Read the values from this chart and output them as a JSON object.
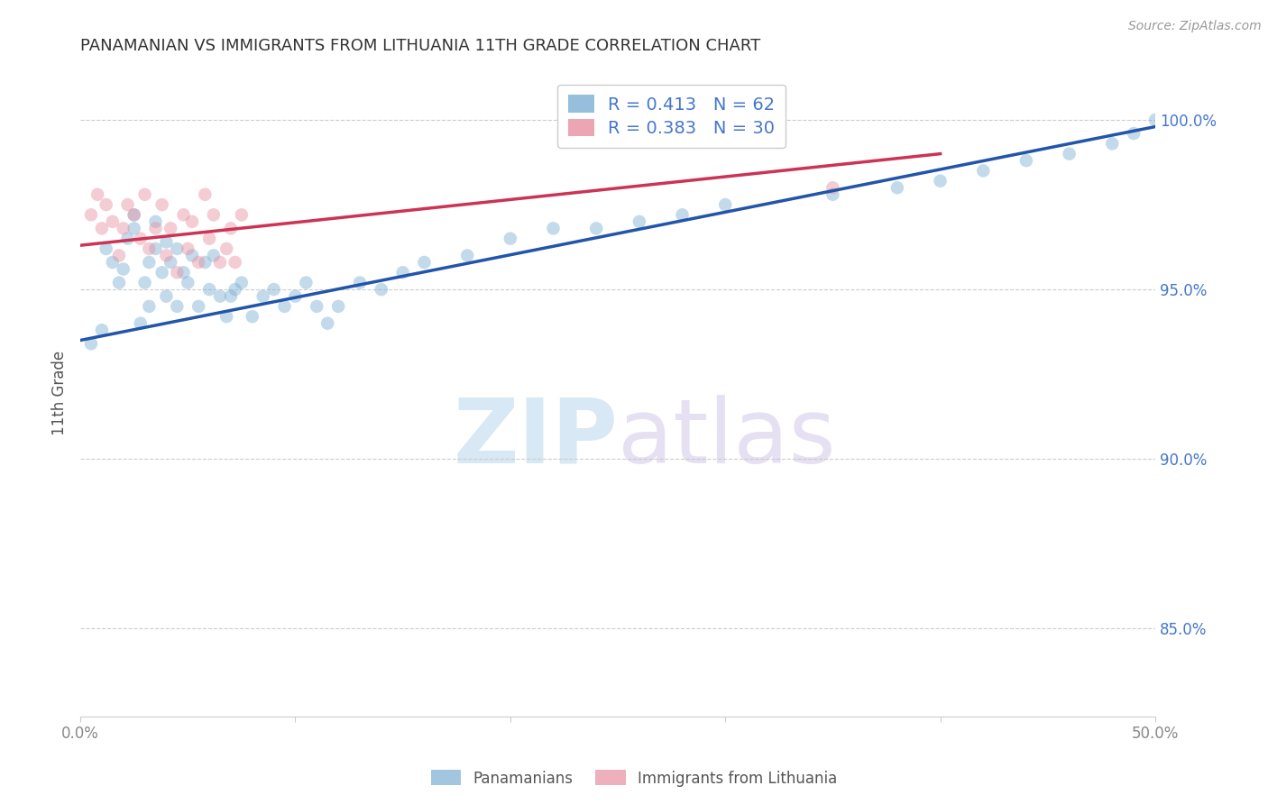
{
  "title": "PANAMANIAN VS IMMIGRANTS FROM LITHUANIA 11TH GRADE CORRELATION CHART",
  "source": "Source: ZipAtlas.com",
  "ylabel": "11th Grade",
  "y_tick_vals": [
    0.85,
    0.9,
    0.95,
    1.0
  ],
  "x_lim": [
    0.0,
    0.5
  ],
  "y_lim": [
    0.824,
    1.015
  ],
  "legend_entries": [
    {
      "label": "R = 0.413   N = 62",
      "color": "#a8c4e0"
    },
    {
      "label": "R = 0.383   N = 30",
      "color": "#f4a8b8"
    }
  ],
  "blue_scatter_x": [
    0.005,
    0.01,
    0.012,
    0.015,
    0.018,
    0.02,
    0.022,
    0.025,
    0.025,
    0.028,
    0.03,
    0.032,
    0.032,
    0.035,
    0.035,
    0.038,
    0.04,
    0.04,
    0.042,
    0.045,
    0.045,
    0.048,
    0.05,
    0.052,
    0.055,
    0.058,
    0.06,
    0.062,
    0.065,
    0.068,
    0.07,
    0.072,
    0.075,
    0.08,
    0.085,
    0.09,
    0.095,
    0.1,
    0.105,
    0.11,
    0.115,
    0.12,
    0.13,
    0.14,
    0.15,
    0.16,
    0.18,
    0.2,
    0.22,
    0.24,
    0.26,
    0.28,
    0.3,
    0.35,
    0.38,
    0.4,
    0.42,
    0.44,
    0.46,
    0.48,
    0.49,
    0.5
  ],
  "blue_scatter_y": [
    0.934,
    0.938,
    0.962,
    0.958,
    0.952,
    0.956,
    0.965,
    0.968,
    0.972,
    0.94,
    0.952,
    0.958,
    0.945,
    0.97,
    0.962,
    0.955,
    0.948,
    0.964,
    0.958,
    0.945,
    0.962,
    0.955,
    0.952,
    0.96,
    0.945,
    0.958,
    0.95,
    0.96,
    0.948,
    0.942,
    0.948,
    0.95,
    0.952,
    0.942,
    0.948,
    0.95,
    0.945,
    0.948,
    0.952,
    0.945,
    0.94,
    0.945,
    0.952,
    0.95,
    0.955,
    0.958,
    0.96,
    0.965,
    0.968,
    0.968,
    0.97,
    0.972,
    0.975,
    0.978,
    0.98,
    0.982,
    0.985,
    0.988,
    0.99,
    0.993,
    0.996,
    1.0
  ],
  "pink_scatter_x": [
    0.005,
    0.008,
    0.01,
    0.012,
    0.015,
    0.018,
    0.02,
    0.022,
    0.025,
    0.028,
    0.03,
    0.032,
    0.035,
    0.038,
    0.04,
    0.042,
    0.045,
    0.048,
    0.05,
    0.052,
    0.055,
    0.058,
    0.06,
    0.062,
    0.065,
    0.068,
    0.07,
    0.072,
    0.075,
    0.35
  ],
  "pink_scatter_y": [
    0.972,
    0.978,
    0.968,
    0.975,
    0.97,
    0.96,
    0.968,
    0.975,
    0.972,
    0.965,
    0.978,
    0.962,
    0.968,
    0.975,
    0.96,
    0.968,
    0.955,
    0.972,
    0.962,
    0.97,
    0.958,
    0.978,
    0.965,
    0.972,
    0.958,
    0.962,
    0.968,
    0.958,
    0.972,
    0.98
  ],
  "blue_line_x": [
    0.0,
    0.5
  ],
  "blue_line_y": [
    0.935,
    0.998
  ],
  "pink_line_x": [
    0.0,
    0.4
  ],
  "pink_line_y": [
    0.963,
    0.99
  ],
  "scatter_alpha": 0.45,
  "scatter_size": 110,
  "scatter_color_blue": "#7bafd4",
  "scatter_color_pink": "#e88fa0",
  "line_color_blue": "#2255aa",
  "line_color_pink": "#cc3355",
  "grid_color": "#c8c8c8",
  "background_color": "#ffffff",
  "tick_color_y": "#4477cc",
  "tick_color_x": "#888888"
}
